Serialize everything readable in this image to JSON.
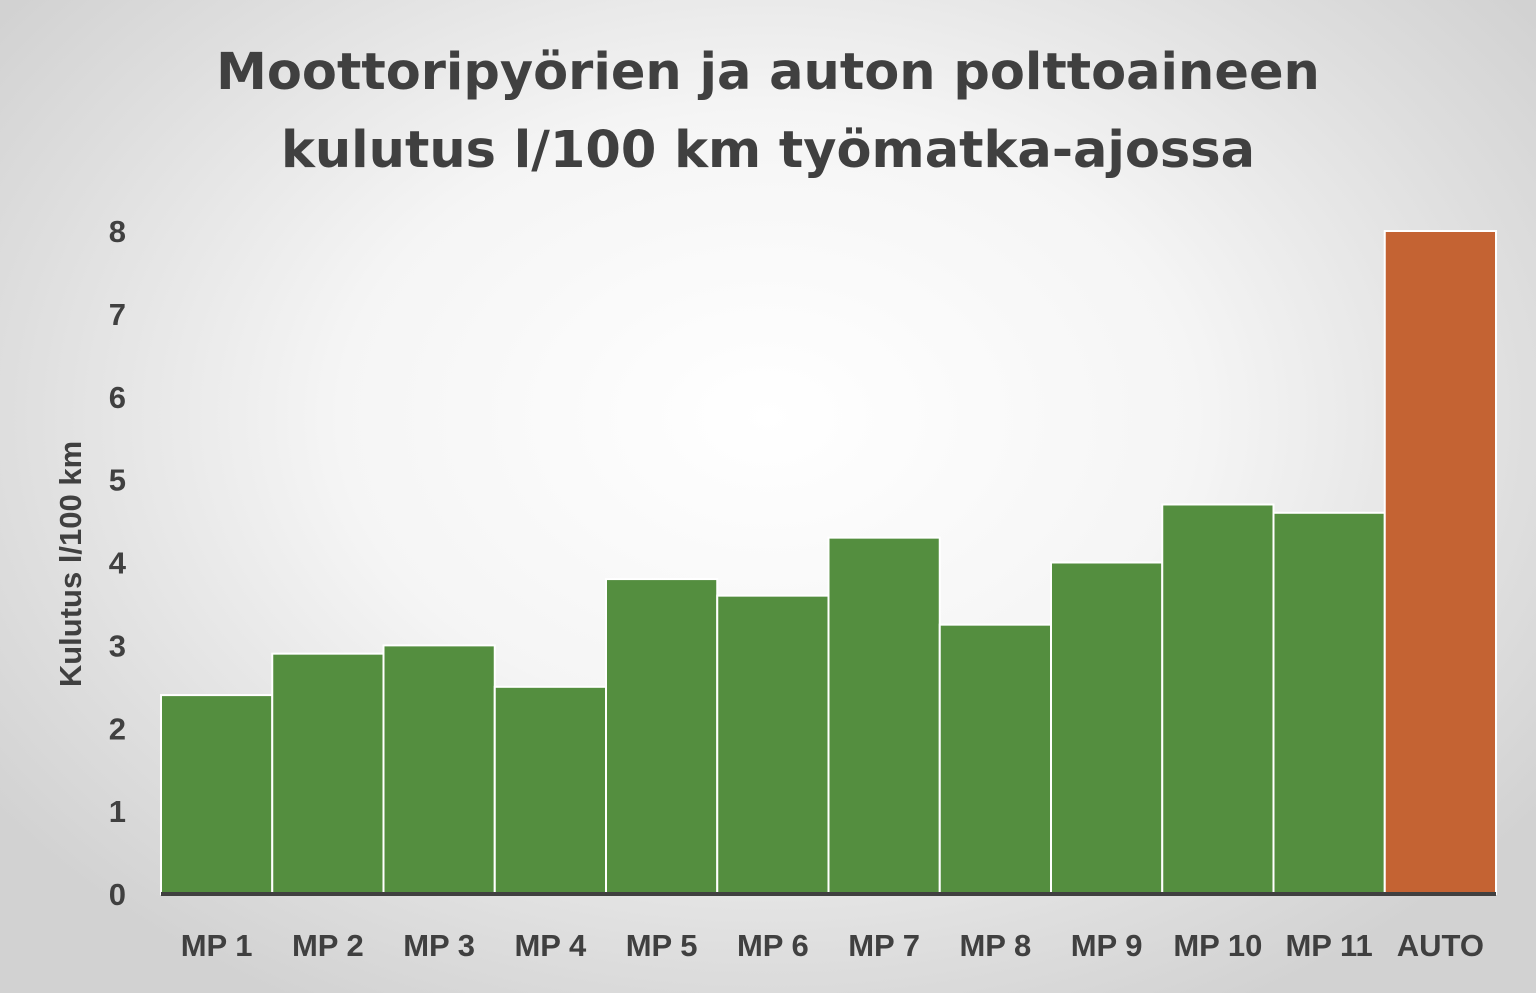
{
  "chart_data": {
    "type": "bar",
    "title_line1": "Moottoripyörien ja auton polttoaineen",
    "title_line2": "kulutus l/100 km työmatka-ajossa",
    "ylabel": "Kulutus l/100 km",
    "xlabel": "",
    "ylim": [
      0,
      8
    ],
    "yticks": [
      "0",
      "1",
      "2",
      "3",
      "4",
      "5",
      "6",
      "7",
      "8"
    ],
    "categories": [
      "MP 1",
      "MP 2",
      "MP 3",
      "MP 4",
      "MP 5",
      "MP 6",
      "MP 7",
      "MP 8",
      "MP 9",
      "MP 10",
      "MP 11",
      "AUTO"
    ],
    "values": [
      2.4,
      2.9,
      3.0,
      2.5,
      3.8,
      3.6,
      4.3,
      3.25,
      4.0,
      4.7,
      4.6,
      8.0
    ],
    "bar_colors": [
      "#548e3f",
      "#548e3f",
      "#548e3f",
      "#548e3f",
      "#548e3f",
      "#548e3f",
      "#548e3f",
      "#548e3f",
      "#548e3f",
      "#548e3f",
      "#548e3f",
      "#c46333"
    ],
    "gridlines": false,
    "legend": "none"
  }
}
